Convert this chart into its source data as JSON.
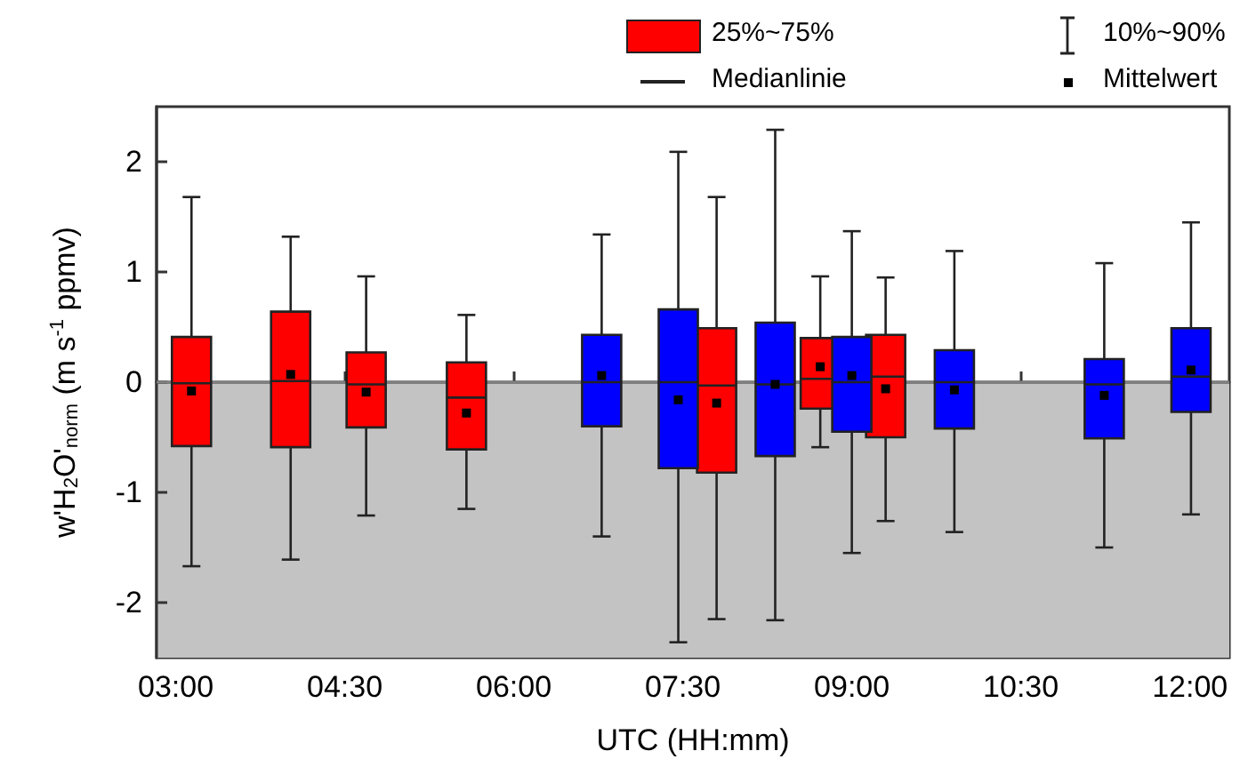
{
  "chart_data": {
    "type": "box",
    "xlabel": "UTC (HH:mm)",
    "ylabel": "w'H$_{2}$O'$_{norm}$ (m s$^{-1}$ ppmv)",
    "xlim": [
      2.83,
      12.35
    ],
    "xticks": [
      {
        "value": 3,
        "label": "03:00"
      },
      {
        "value": 4.5,
        "label": "04:30"
      },
      {
        "value": 6,
        "label": "06:00"
      },
      {
        "value": 7.5,
        "label": "07:30"
      },
      {
        "value": 9,
        "label": "09:00"
      },
      {
        "value": 10.5,
        "label": "10:30"
      },
      {
        "value": 12,
        "label": "12:00"
      }
    ],
    "ylim": [
      -2.5,
      2.5
    ],
    "yticks": [
      -2,
      -1,
      0,
      1,
      2
    ],
    "series": [
      {
        "color": "#ff0000",
        "x": [
          3.14,
          4.02,
          4.69,
          5.58,
          7.8,
          8.72,
          9.3
        ],
        "boxes": [
          {
            "low": -1.67,
            "q1": -0.58,
            "median": -0.01,
            "q3": 0.41,
            "high": 1.68,
            "mean": -0.08
          },
          {
            "low": -1.61,
            "q1": -0.59,
            "median": 0.01,
            "q3": 0.64,
            "high": 1.32,
            "mean": 0.07
          },
          {
            "low": -1.21,
            "q1": -0.41,
            "median": -0.02,
            "q3": 0.27,
            "high": 0.96,
            "mean": -0.09
          },
          {
            "low": -1.15,
            "q1": -0.61,
            "median": -0.14,
            "q3": 0.18,
            "high": 0.61,
            "mean": -0.28
          },
          {
            "low": -2.15,
            "q1": -0.82,
            "median": -0.03,
            "q3": 0.49,
            "high": 1.68,
            "mean": -0.19
          },
          {
            "low": -0.59,
            "q1": -0.24,
            "median": 0.03,
            "q3": 0.4,
            "high": 0.96,
            "mean": 0.14
          },
          {
            "low": -1.26,
            "q1": -0.5,
            "median": 0.05,
            "q3": 0.43,
            "high": 0.95,
            "mean": -0.06
          }
        ]
      },
      {
        "color": "#0000ff",
        "x": [
          6.78,
          7.46,
          8.32,
          9.0,
          9.91,
          11.24,
          12.01
        ],
        "boxes": [
          {
            "low": -1.4,
            "q1": -0.4,
            "median": 0,
            "q3": 0.43,
            "high": 1.34,
            "mean": 0.06
          },
          {
            "low": -2.36,
            "q1": -0.78,
            "median": 0,
            "q3": 0.66,
            "high": 2.09,
            "mean": -0.16
          },
          {
            "low": -2.16,
            "q1": -0.67,
            "median": -0.02,
            "q3": 0.54,
            "high": 2.29,
            "mean": -0.02
          },
          {
            "low": -1.55,
            "q1": -0.45,
            "median": 0,
            "q3": 0.41,
            "high": 1.37,
            "mean": 0.06
          },
          {
            "low": -1.36,
            "q1": -0.42,
            "median": 0,
            "q3": 0.29,
            "high": 1.19,
            "mean": -0.07
          },
          {
            "low": -1.5,
            "q1": -0.51,
            "median": -0.02,
            "q3": 0.21,
            "high": 1.08,
            "mean": -0.12
          },
          {
            "low": -1.2,
            "q1": -0.27,
            "median": 0.05,
            "q3": 0.49,
            "high": 1.45,
            "mean": 0.11
          }
        ]
      }
    ],
    "bands": [
      {
        "axis": "y",
        "from": -2.5,
        "to": 0,
        "color": "#c3c3c3"
      }
    ],
    "ref_lines": [
      {
        "axis": "y",
        "value": 0,
        "color": "#808080"
      }
    ],
    "annotations": [
      "25%~75%",
      "Medianlinie",
      "10%~90%",
      "Mittelwert"
    ],
    "grid": false
  }
}
